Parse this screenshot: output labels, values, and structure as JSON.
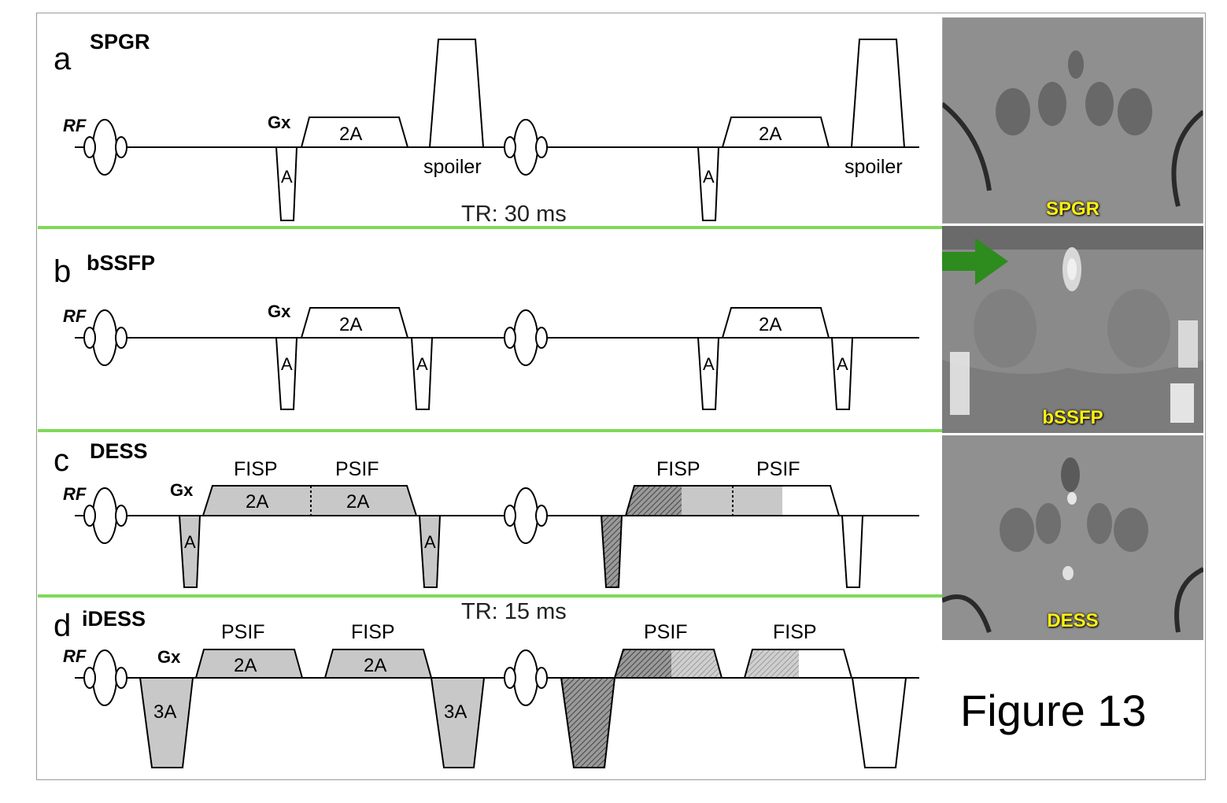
{
  "figure_label": "Figure 13",
  "panels": [
    {
      "letter": "a",
      "name": "SPGR"
    },
    {
      "letter": "b",
      "name": "bSSFP"
    },
    {
      "letter": "c",
      "name": "DESS"
    },
    {
      "letter": "d",
      "name": "iDESS"
    }
  ],
  "labels": {
    "rf": "RF",
    "gx": "Gx",
    "a": "A",
    "two_a": "2A",
    "three_a": "3A",
    "spoiler": "spoiler",
    "fisp": "FISP",
    "psif": "PSIF"
  },
  "tr_labels": [
    "TR: 30 ms",
    "TR: 15 ms"
  ],
  "image_captions": [
    "SPGR",
    "bSSFP",
    "DESS"
  ],
  "colors": {
    "separator": "#7ed957",
    "arrow": "#2e8b1e",
    "caption": "#ffef10",
    "fill_gray": "#c8c8c8"
  }
}
